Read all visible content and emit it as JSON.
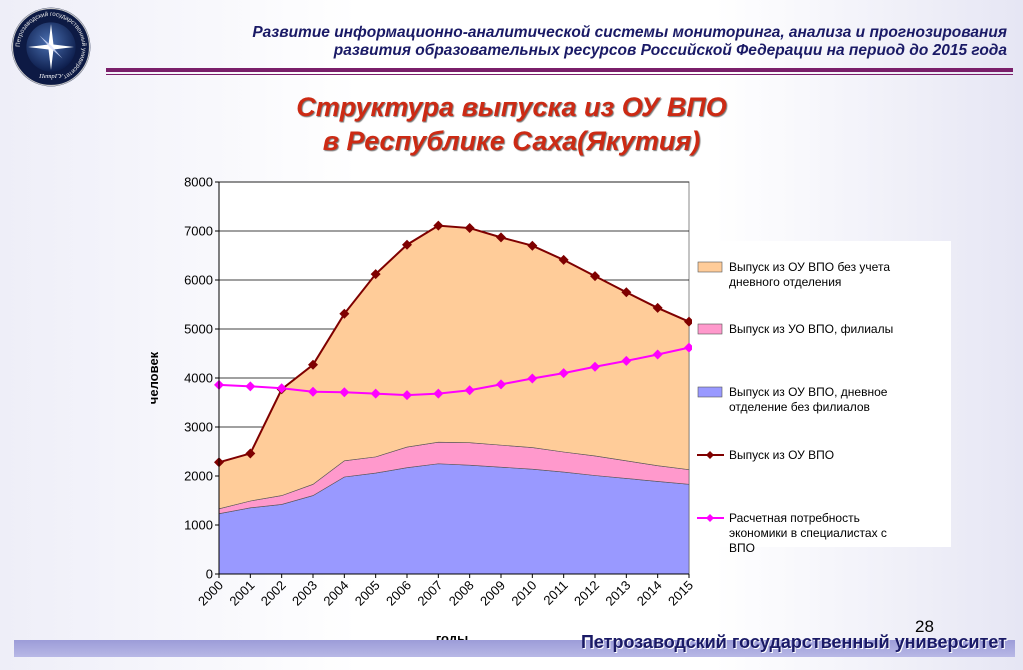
{
  "header": {
    "line1": "Развитие информационно-аналитической системы мониторинга, анализа и прогнозирования",
    "line2": "развития образовательных ресурсов Российской Федерации на период до 2015 года",
    "logo_text": "Петрозаводский государственный университет",
    "logo_abbr": "ПетрГУ"
  },
  "title": {
    "line1": "Структура выпуска из ОУ ВПО",
    "line2": "в Республике Саха(Якутия)"
  },
  "chart_data": {
    "type": "area",
    "categories": [
      "2000",
      "2001",
      "2002",
      "2003",
      "2004",
      "2005",
      "2006",
      "2007",
      "2008",
      "2009",
      "2010",
      "2011",
      "2012",
      "2013",
      "2014",
      "2015"
    ],
    "xlabel": "годы",
    "ylabel": "человек",
    "ylim": [
      0,
      8000
    ],
    "yticks": [
      0,
      1000,
      2000,
      3000,
      4000,
      5000,
      6000,
      7000,
      8000
    ],
    "grid": true,
    "legend_placement": "right",
    "stacked_areas": [
      {
        "name": "Выпуск из ОУ ВПО,  дневное отделение  без филиалов",
        "color": "#9999ff",
        "values": [
          1230,
          1350,
          1420,
          1600,
          1980,
          2060,
          2170,
          2250,
          2220,
          2180,
          2140,
          2080,
          2010,
          1950,
          1890,
          1830
        ]
      },
      {
        "name": "Выпуск из УО ВПО, филиалы",
        "color": "#ff99cc",
        "values": [
          100,
          140,
          180,
          230,
          330,
          330,
          420,
          440,
          460,
          450,
          440,
          410,
          400,
          360,
          320,
          300
        ]
      },
      {
        "name": "Выпуск из ОУ ВПО без учета дневного отделения",
        "color": "#ffcc99",
        "values": [
          950,
          970,
          2170,
          2440,
          3000,
          3730,
          4130,
          4420,
          4380,
          4240,
          4120,
          3920,
          3670,
          3440,
          3220,
          3020
        ]
      }
    ],
    "lines": [
      {
        "name": "Выпуск из ОУ ВПО",
        "color": "#7f0000",
        "values": [
          2280,
          2460,
          3770,
          4270,
          5310,
          6120,
          6720,
          7110,
          7060,
          6870,
          6700,
          6410,
          6080,
          5750,
          5430,
          5150
        ]
      },
      {
        "name": "Расчетная потребность экономики в специалистах с  ВПО",
        "color": "#ff00ff",
        "values": [
          3860,
          3830,
          3790,
          3720,
          3710,
          3680,
          3650,
          3680,
          3750,
          3870,
          3990,
          4100,
          4230,
          4350,
          4480,
          4620
        ]
      }
    ],
    "legend_order": [
      {
        "name": "Выпуск из ОУ ВПО без учета дневного отделения",
        "kind": "area",
        "color": "#ffcc99"
      },
      {
        "name": "Выпуск из УО ВПО, филиалы",
        "kind": "area",
        "color": "#ff99cc"
      },
      {
        "name": "Выпуск из ОУ ВПО,  дневное отделение  без филиалов",
        "kind": "area",
        "color": "#9999ff"
      },
      {
        "name": "Выпуск из ОУ ВПО",
        "kind": "line",
        "color": "#7f0000"
      },
      {
        "name": "Расчетная потребность экономики в специалистах с  ВПО",
        "kind": "line",
        "color": "#ff00ff"
      }
    ]
  },
  "page_number": "28",
  "footer": {
    "text": "Петрозаводский государственный университет"
  }
}
